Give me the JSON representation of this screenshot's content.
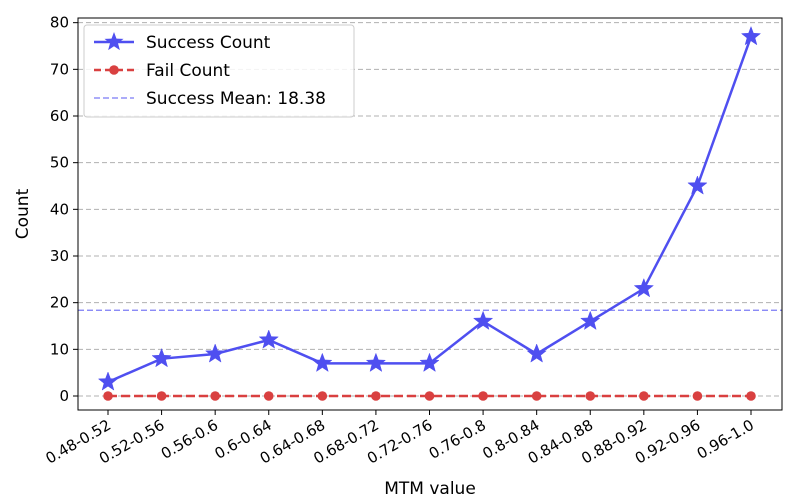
{
  "chart_data": {
    "type": "line",
    "xlabel": "MTM value",
    "ylabel": "Count",
    "categories": [
      "0.48-0.52",
      "0.52-0.56",
      "0.56-0.6",
      "0.6-0.64",
      "0.64-0.68",
      "0.68-0.72",
      "0.72-0.76",
      "0.76-0.8",
      "0.8-0.84",
      "0.84-0.88",
      "0.88-0.92",
      "0.92-0.96",
      "0.96-1.0"
    ],
    "yticks": [
      0,
      10,
      20,
      30,
      40,
      50,
      60,
      70,
      80
    ],
    "ylim": [
      -3,
      81
    ],
    "grid": "horizontal dashed",
    "legend_position": "top-left",
    "series": [
      {
        "name": "Success Count",
        "values": [
          3,
          8,
          9,
          12,
          7,
          7,
          7,
          16,
          9,
          16,
          23,
          45,
          77
        ],
        "color": "#4f4ff0",
        "marker": "star",
        "line": "solid"
      },
      {
        "name": "Fail Count",
        "values": [
          0,
          0,
          0,
          0,
          0,
          0,
          0,
          0,
          0,
          0,
          0,
          0,
          0
        ],
        "color": "#d94040",
        "marker": "circle",
        "line": "dashed"
      }
    ],
    "reference_lines": [
      {
        "name": "Success Mean: 18.38",
        "value": 18.38,
        "color": "#7b7bf5",
        "line": "dashed"
      }
    ]
  }
}
